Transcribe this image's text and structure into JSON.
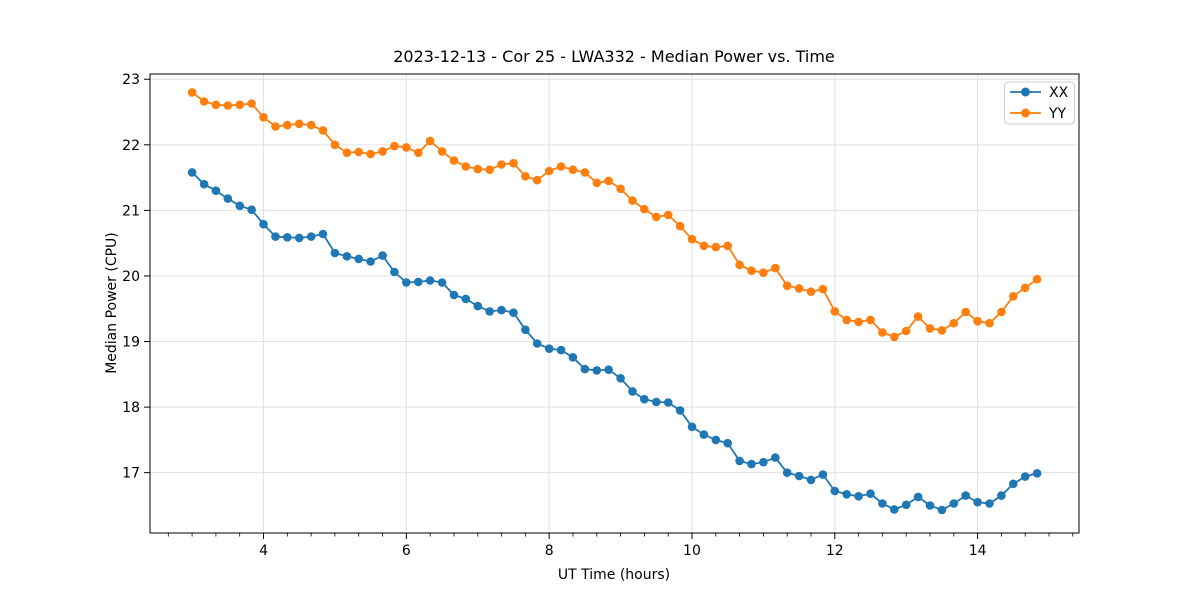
{
  "figure": {
    "background": "#ffffff"
  },
  "chart_data": {
    "type": "line",
    "title": "2023-12-13 - Cor 25 - LWA332 - Median Power vs. Time",
    "xlabel": "UT Time (hours)",
    "ylabel": "Median Power (CPU)",
    "xlim": [
      2.41,
      15.42
    ],
    "ylim": [
      16.08,
      23.08
    ],
    "xticks": [
      4,
      6,
      8,
      10,
      12,
      14
    ],
    "yticks": [
      17,
      18,
      19,
      20,
      21,
      22,
      23
    ],
    "x_minor_step": 0.3333,
    "grid": true,
    "grid_color": "#e0e0e0",
    "legend_position": "upper right",
    "x": [
      3.0,
      3.167,
      3.333,
      3.5,
      3.667,
      3.833,
      4.0,
      4.167,
      4.333,
      4.5,
      4.667,
      4.833,
      5.0,
      5.167,
      5.333,
      5.5,
      5.667,
      5.833,
      6.0,
      6.167,
      6.333,
      6.5,
      6.667,
      6.833,
      7.0,
      7.167,
      7.333,
      7.5,
      7.667,
      7.833,
      8.0,
      8.167,
      8.333,
      8.5,
      8.667,
      8.833,
      9.0,
      9.167,
      9.333,
      9.5,
      9.667,
      9.833,
      10.0,
      10.167,
      10.333,
      10.5,
      10.667,
      10.833,
      11.0,
      11.167,
      11.333,
      11.5,
      11.667,
      11.833,
      12.0,
      12.167,
      12.333,
      12.5,
      12.667,
      12.833,
      13.0,
      13.167,
      13.333,
      13.5,
      13.667,
      13.833,
      14.0,
      14.167,
      14.333,
      14.5,
      14.667,
      14.833
    ],
    "series": [
      {
        "name": "XX",
        "color": "#1f77b4",
        "marker": "circle",
        "values": [
          21.58,
          21.4,
          21.3,
          21.18,
          21.07,
          21.01,
          20.79,
          20.6,
          20.59,
          20.58,
          20.6,
          20.64,
          20.35,
          20.3,
          20.26,
          20.22,
          20.31,
          20.06,
          19.9,
          19.91,
          19.93,
          19.9,
          19.71,
          19.65,
          19.54,
          19.46,
          19.48,
          19.44,
          19.18,
          18.97,
          18.89,
          18.87,
          18.76,
          18.58,
          18.56,
          18.57,
          18.44,
          18.24,
          18.12,
          18.08,
          18.07,
          17.95,
          17.7,
          17.58,
          17.5,
          17.45,
          17.18,
          17.13,
          17.16,
          17.23,
          17.0,
          16.95,
          16.89,
          16.97,
          16.72,
          16.67,
          16.64,
          16.68,
          16.53,
          16.44,
          16.51,
          16.63,
          16.5,
          16.43,
          16.53,
          16.65,
          16.55,
          16.53,
          16.65,
          16.83,
          16.94,
          16.99
        ]
      },
      {
        "name": "YY",
        "color": "#ff7f0e",
        "marker": "circle",
        "values": [
          22.8,
          22.66,
          22.61,
          22.6,
          22.61,
          22.63,
          22.42,
          22.28,
          22.3,
          22.32,
          22.3,
          22.22,
          22.0,
          21.88,
          21.89,
          21.86,
          21.9,
          21.98,
          21.96,
          21.88,
          22.06,
          21.9,
          21.76,
          21.67,
          21.63,
          21.62,
          21.7,
          21.72,
          21.52,
          21.46,
          21.6,
          21.67,
          21.62,
          21.58,
          21.42,
          21.45,
          21.33,
          21.15,
          21.02,
          20.9,
          20.93,
          20.76,
          20.56,
          20.46,
          20.44,
          20.46,
          20.17,
          20.08,
          20.05,
          20.12,
          19.85,
          19.81,
          19.76,
          19.8,
          19.46,
          19.33,
          19.3,
          19.33,
          19.14,
          19.07,
          19.16,
          19.38,
          19.2,
          19.17,
          19.28,
          19.45,
          19.31,
          19.28,
          19.45,
          19.69,
          19.82,
          19.95
        ]
      }
    ]
  }
}
